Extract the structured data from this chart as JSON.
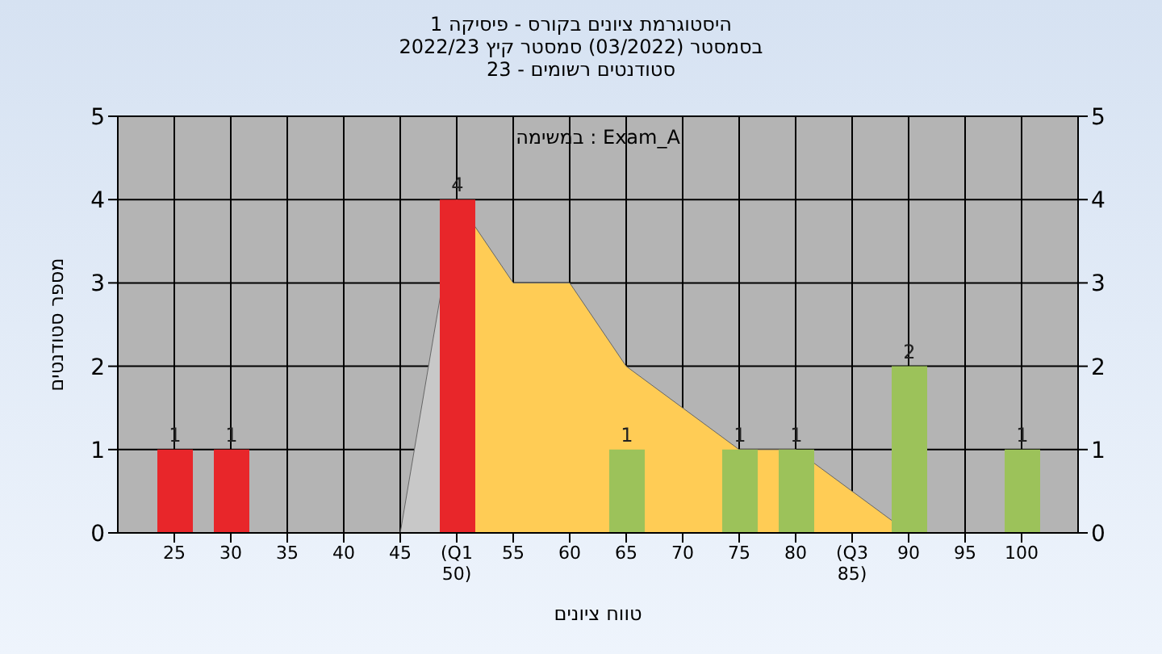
{
  "chart_data": {
    "type": "bar",
    "title": "היסטוגרמת ציונים בקורס - פיסיקה 1",
    "subtitle": "בסמסטר  (03/2022)  סמסטר קיץ 2022/23\nסטודנטים רשומים - 23",
    "xlabel": "טווח ציונים",
    "ylabel": "מספר סטודנטים",
    "annotations": [
      "במשימה : Exam_A"
    ],
    "series": [
      {
        "type": "area",
        "color": "#c8c8c8",
        "x": [
          45,
          50
        ],
        "values": [
          0,
          4
        ]
      },
      {
        "type": "area",
        "color": "#ffcc55",
        "x": [
          50,
          55,
          60,
          65,
          70,
          75,
          80,
          85,
          90
        ],
        "values": [
          4,
          3,
          3,
          2,
          1.5,
          1,
          1,
          0.5,
          0
        ]
      },
      {
        "x": [
          25,
          30,
          50,
          65,
          75,
          80,
          90,
          100
        ],
        "values": [
          1,
          1,
          4,
          1,
          1,
          1,
          2,
          1
        ],
        "value_labels": [
          "1",
          "1",
          "4",
          "1",
          "1",
          "1",
          "2",
          "1"
        ],
        "colors": [
          "#e8262a",
          "#e8262a",
          "#e8262a",
          "#9cc25a",
          "#9cc25a",
          "#9cc25a",
          "#9cc25a",
          "#9cc25a"
        ]
      }
    ],
    "grid": true,
    "xlim": [
      20,
      105
    ],
    "xticks": [
      25,
      30,
      35,
      40,
      45,
      {
        "value": 50,
        "label": "(Q1 50)"
      },
      55,
      60,
      65,
      70,
      75,
      80,
      {
        "value": 85,
        "label": "(Q3 85)"
      },
      90,
      95,
      100
    ],
    "ylim": [
      0,
      5
    ],
    "yticks": [
      0,
      1,
      2,
      3,
      4,
      5
    ],
    "y2lim": [
      0,
      5
    ],
    "y2ticks": [
      0,
      1,
      2,
      3,
      4,
      5
    ]
  }
}
